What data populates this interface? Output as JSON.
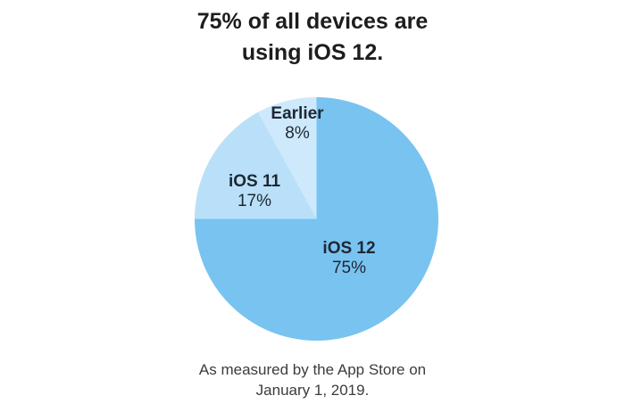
{
  "page": {
    "background_color": "#ffffff"
  },
  "title": {
    "line1": "75% of all devices are",
    "line2": "using iOS 12."
  },
  "caption": {
    "line1": "As measured by the App Store on",
    "line2": "January 1, 2019."
  },
  "chart_data": {
    "type": "pie",
    "title": "75% of all devices are using iOS 12.",
    "categories": [
      "iOS 12",
      "iOS 11",
      "Earlier"
    ],
    "values": [
      75,
      17,
      8
    ],
    "slices": [
      {
        "label": "iOS 12",
        "value": 75,
        "display": "75%",
        "color": "#79C3F0"
      },
      {
        "label": "iOS 11",
        "value": 17,
        "display": "17%",
        "color": "#B9E0F8"
      },
      {
        "label": "Earlier",
        "value": 8,
        "display": "8%",
        "color": "#CDE9FB"
      }
    ],
    "start_angle_deg": 0,
    "direction": "clockwise",
    "legend_position": "none",
    "labels_on_chart": true,
    "caption": "As measured by the App Store on January 1, 2019.",
    "title_color": "#1d1d1f",
    "label_text_color": "#1d2733",
    "caption_color": "#3c3c3e"
  }
}
